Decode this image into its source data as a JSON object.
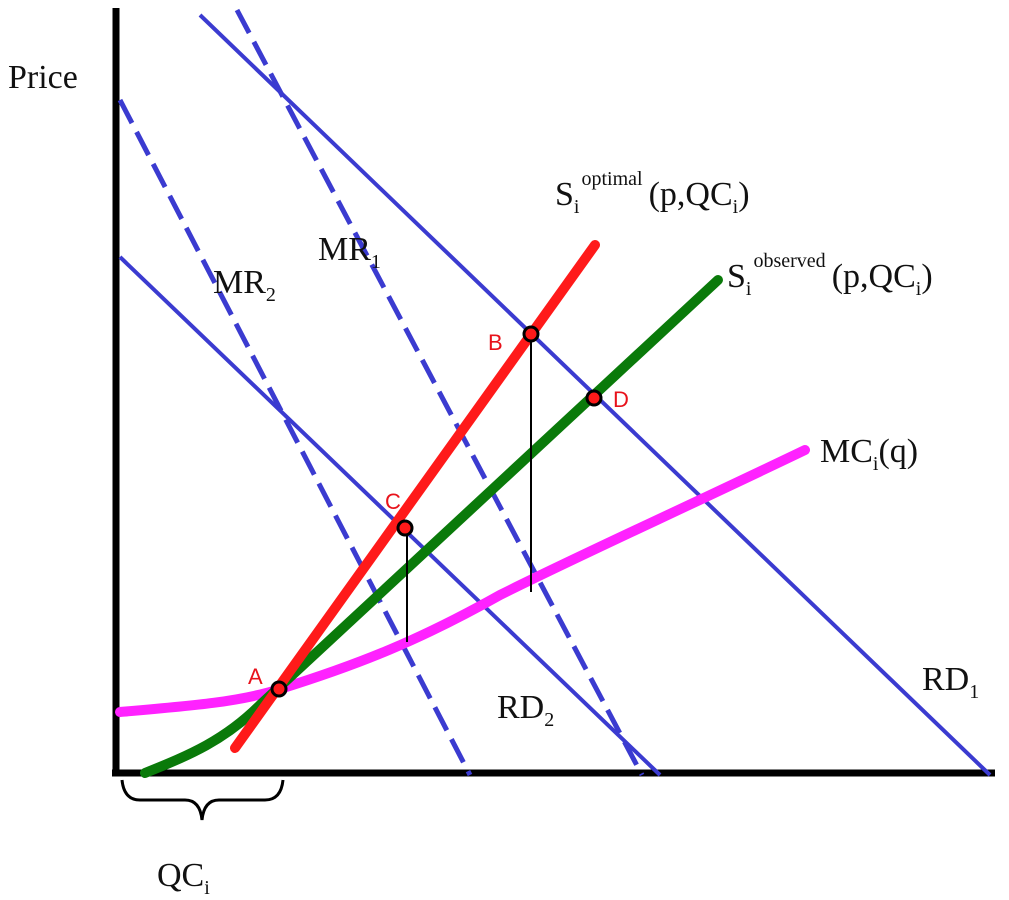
{
  "diagram": {
    "y_axis_label": "Price",
    "curves": {
      "mr1": {
        "label": "MR",
        "sub": "1",
        "style": "dashed"
      },
      "mr2": {
        "label": "MR",
        "sub": "2",
        "style": "dashed"
      },
      "rd1": {
        "label": "RD",
        "sub": "1",
        "style": "solid"
      },
      "rd2": {
        "label": "RD",
        "sub": "2",
        "style": "solid"
      },
      "s_optimal": {
        "label": "S",
        "sub": "i",
        "sup": "optimal",
        "args": "(p,QC",
        "args_sub": "i",
        "args_close": ")"
      },
      "s_observed": {
        "label": "S",
        "sub": "i",
        "sup": "observed",
        "args": "(p,QC",
        "args_sub": "i",
        "args_close": ")"
      },
      "mc": {
        "label": "MC",
        "sub": "i",
        "args": "(q)"
      }
    },
    "points": {
      "a": "A",
      "b": "B",
      "c": "C",
      "d": "D"
    },
    "bracket": {
      "label": "QC",
      "sub": "i"
    },
    "colors": {
      "demand": "#3b3bd0",
      "optimal": "#ff1a1a",
      "observed": "#0a7a0a",
      "mc": "#ff22ff",
      "axis": "#000000",
      "points": "#e8121b"
    }
  }
}
